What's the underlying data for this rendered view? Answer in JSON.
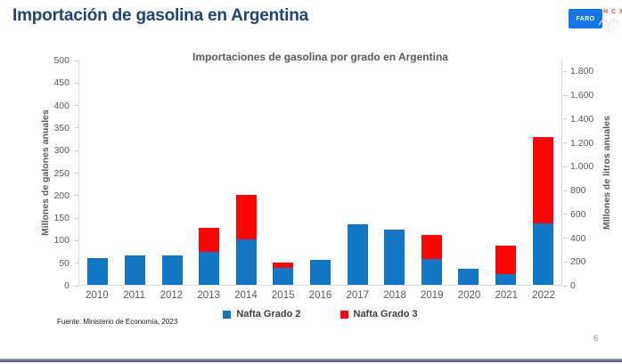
{
  "slide": {
    "title": "Importación de gasolina  en Argentina",
    "page_number": "6"
  },
  "logo": {
    "badge_label": "FARO",
    "molecule_letters": [
      "H",
      "C",
      "X"
    ]
  },
  "chart_data": {
    "type": "bar",
    "stacked": true,
    "title": "Importaciones de gasolina por grado en Argentina",
    "categories": [
      "2010",
      "2011",
      "2012",
      "2013",
      "2014",
      "2015",
      "2016",
      "2017",
      "2018",
      "2019",
      "2020",
      "2021",
      "2022"
    ],
    "series": [
      {
        "name": "Nafta Grado 2",
        "color": "#1376C5",
        "values": [
          60,
          65,
          66,
          73,
          100,
          38,
          56,
          135,
          122,
          58,
          35,
          24,
          137
        ]
      },
      {
        "name": "Nafta Grado 3",
        "color": "#FB0606",
        "values": [
          0,
          0,
          0,
          53,
          100,
          12,
          0,
          0,
          0,
          52,
          0,
          63,
          191
        ]
      }
    ],
    "left_axis": {
      "label": "Millones de galones anuales",
      "min": 0,
      "max": 500,
      "step": 50,
      "tick_labels": [
        "0",
        "50",
        "100",
        "150",
        "200",
        "250",
        "300",
        "350",
        "400",
        "450",
        "500"
      ]
    },
    "right_axis": {
      "label": "MIllones de litros anuales",
      "min": 0,
      "max": 1800,
      "step": 200,
      "tick_labels": [
        "0",
        "200",
        "400",
        "600",
        "800",
        "1.000",
        "1.200",
        "1.400",
        "1.600",
        "1.800"
      ]
    },
    "legend_position": "bottom",
    "gridlines": false
  },
  "source": "Fuente: Ministerio de Economía, 2023"
}
